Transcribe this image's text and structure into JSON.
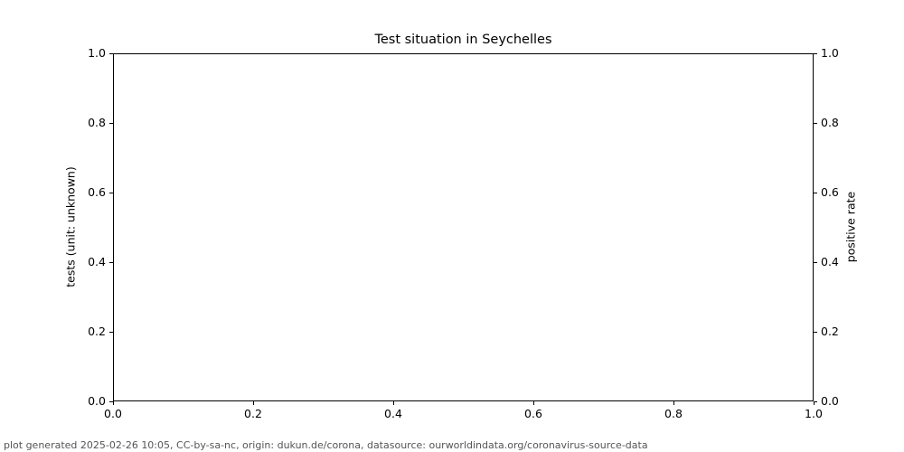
{
  "title": "Test situation in Seychelles",
  "footer": "plot generated 2025-02-26 10:05, CC-by-sa-nc, origin: dukun.de/corona, datasource: ourworldindata.org/coronavirus-source-data",
  "chart_data": {
    "type": "line",
    "title": "Test situation in Seychelles",
    "xlabel": "",
    "ylabel_left": "tests (unit: unknown)",
    "ylabel_right": "positive rate",
    "x_ticks": [
      "0.0",
      "0.2",
      "0.4",
      "0.6",
      "0.8",
      "1.0"
    ],
    "y_ticks_left": [
      "0.0",
      "0.2",
      "0.4",
      "0.6",
      "0.8",
      "1.0"
    ],
    "y_ticks_right": [
      "0.0",
      "0.2",
      "0.4",
      "0.6",
      "0.8",
      "1.0"
    ],
    "xlim": [
      0.0,
      1.0
    ],
    "ylim_left": [
      0.0,
      1.0
    ],
    "ylim_right": [
      0.0,
      1.0
    ],
    "series": [],
    "grid": false,
    "legend": null,
    "colors": {
      "spine": "#000000",
      "tick_label": "#000000",
      "footer_text": "#555555",
      "background": "#ffffff"
    }
  }
}
